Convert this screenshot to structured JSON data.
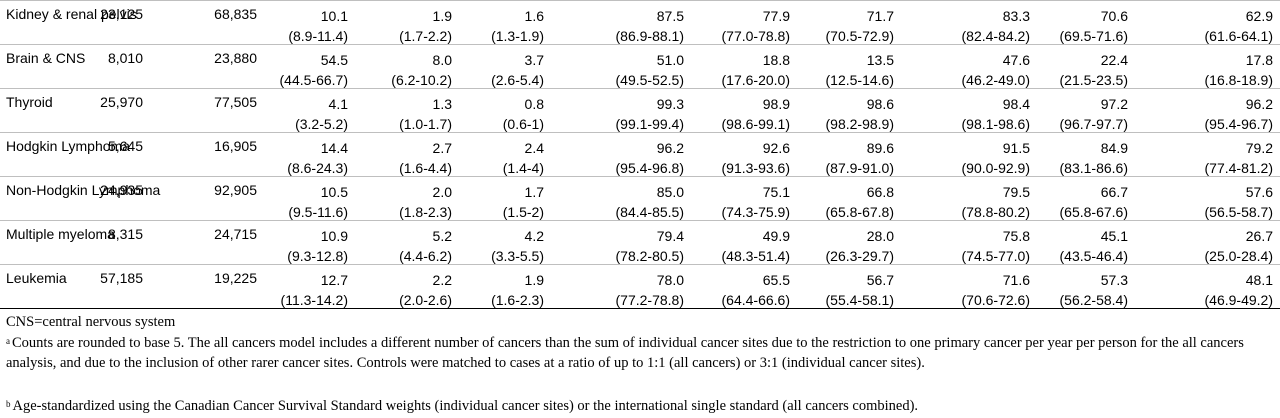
{
  "rows": [
    {
      "site": "Kidney & renal pelvis",
      "cases": "23,125",
      "controls": "68,835",
      "values": [
        [
          "10.1",
          "(8.9-11.4)"
        ],
        [
          "1.9",
          "(1.7-2.2)"
        ],
        [
          "1.6",
          "(1.3-1.9)"
        ],
        [
          "87.5",
          "(86.9-88.1)"
        ],
        [
          "77.9",
          "(77.0-78.8)"
        ],
        [
          "71.7",
          "(70.5-72.9)"
        ],
        [
          "83.3",
          "(82.4-84.2)"
        ],
        [
          "70.6",
          "(69.5-71.6)"
        ],
        [
          "62.9",
          "(61.6-64.1)"
        ]
      ]
    },
    {
      "site": "Brain & CNS",
      "cases": "8,010",
      "controls": "23,880",
      "values": [
        [
          "54.5",
          "(44.5-66.7)"
        ],
        [
          "8.0",
          "(6.2-10.2)"
        ],
        [
          "3.7",
          "(2.6-5.4)"
        ],
        [
          "51.0",
          "(49.5-52.5)"
        ],
        [
          "18.8",
          "(17.6-20.0)"
        ],
        [
          "13.5",
          "(12.5-14.6)"
        ],
        [
          "47.6",
          "(46.2-49.0)"
        ],
        [
          "22.4",
          "(21.5-23.5)"
        ],
        [
          "17.8",
          "(16.8-18.9)"
        ]
      ]
    },
    {
      "site": "Thyroid",
      "cases": "25,970",
      "controls": "77,505",
      "values": [
        [
          "4.1",
          "(3.2-5.2)"
        ],
        [
          "1.3",
          "(1.0-1.7)"
        ],
        [
          "0.8",
          "(0.6-1)"
        ],
        [
          "99.3",
          "(99.1-99.4)"
        ],
        [
          "98.9",
          "(98.6-99.1)"
        ],
        [
          "98.6",
          "(98.2-98.9)"
        ],
        [
          "98.4",
          "(98.1-98.6)"
        ],
        [
          "97.2",
          "(96.7-97.7)"
        ],
        [
          "96.2",
          "(95.4-96.7)"
        ]
      ]
    },
    {
      "site": "Hodgkin Lymphoma",
      "cases": "5,645",
      "controls": "16,905",
      "values": [
        [
          "14.4",
          "(8.6-24.3)"
        ],
        [
          "2.7",
          "(1.6-4.4)"
        ],
        [
          "2.4",
          "(1.4-4)"
        ],
        [
          "96.2",
          "(95.4-96.8)"
        ],
        [
          "92.6",
          "(91.3-93.6)"
        ],
        [
          "89.6",
          "(87.9-91.0)"
        ],
        [
          "91.5",
          "(90.0-92.9)"
        ],
        [
          "84.9",
          "(83.1-86.6)"
        ],
        [
          "79.2",
          "(77.4-81.2)"
        ]
      ]
    },
    {
      "site": "Non-Hodgkin Lymphoma",
      "cases": "24,935",
      "controls": "92,905",
      "values": [
        [
          "10.5",
          "(9.5-11.6)"
        ],
        [
          "2.0",
          "(1.8-2.3)"
        ],
        [
          "1.7",
          "(1.5-2)"
        ],
        [
          "85.0",
          "(84.4-85.5)"
        ],
        [
          "75.1",
          "(74.3-75.9)"
        ],
        [
          "66.8",
          "(65.8-67.8)"
        ],
        [
          "79.5",
          "(78.8-80.2)"
        ],
        [
          "66.7",
          "(65.8-67.6)"
        ],
        [
          "57.6",
          "(56.5-58.7)"
        ]
      ]
    },
    {
      "site": "Multiple myeloma",
      "cases": "8,315",
      "controls": "24,715",
      "values": [
        [
          "10.9",
          "(9.3-12.8)"
        ],
        [
          "5.2",
          "(4.4-6.2)"
        ],
        [
          "4.2",
          "(3.3-5.5)"
        ],
        [
          "79.4",
          "(78.2-80.5)"
        ],
        [
          "49.9",
          "(48.3-51.4)"
        ],
        [
          "28.0",
          "(26.3-29.7)"
        ],
        [
          "75.8",
          "(74.5-77.0)"
        ],
        [
          "45.1",
          "(43.5-46.4)"
        ],
        [
          "26.7",
          "(25.0-28.4)"
        ]
      ]
    },
    {
      "site": "Leukemia",
      "cases": "57,185",
      "controls": "19,225",
      "values": [
        [
          "12.7",
          "(11.3-14.2)"
        ],
        [
          "2.2",
          "(2.0-2.6)"
        ],
        [
          "1.9",
          "(1.6-2.3)"
        ],
        [
          "78.0",
          "(77.2-78.8)"
        ],
        [
          "65.5",
          "(64.4-66.6)"
        ],
        [
          "56.7",
          "(55.4-58.1)"
        ],
        [
          "71.6",
          "(70.6-72.6)"
        ],
        [
          "57.3",
          "(56.2-58.4)"
        ],
        [
          "48.1",
          "(46.9-49.2)"
        ]
      ]
    }
  ],
  "footnotes": {
    "abbrev": "CNS=central nervous system",
    "a_mark": "a",
    "a_text": "Counts are rounded to base 5. The all cancers model includes a different number of cancers than the sum of individual cancer sites due to the restriction to one primary cancer per year per person for the all cancers analysis, and due to the inclusion of other rarer cancer sites. Controls were matched to cases at a ratio of up to 1:1 (all cancers) or 3:1 (individual cancer sites).",
    "b_mark": "b",
    "b_text": "Age-standardized using the Canadian Cancer Survival Standard weights (individual cancer sites) or the international single standard (all cancers combined)."
  }
}
